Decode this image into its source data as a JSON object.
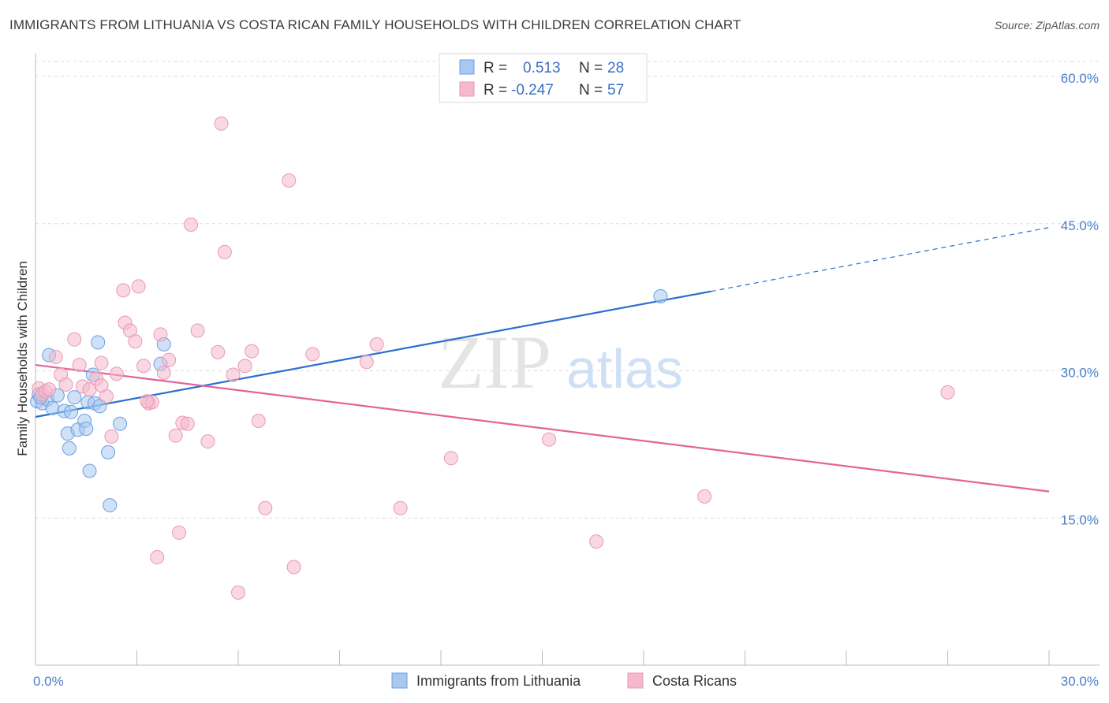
{
  "title": "IMMIGRANTS FROM LITHUANIA VS COSTA RICAN FAMILY HOUSEHOLDS WITH CHILDREN CORRELATION CHART",
  "source": "Source: ZipAtlas.com",
  "watermark": {
    "zip": "ZIP",
    "atlas": "atlas"
  },
  "legend": {
    "rows": [
      {
        "r_label": "R =",
        "r_value": "0.513",
        "n_label": "N =",
        "n_value": "28",
        "color": "#a8c8f0"
      },
      {
        "r_label": "R =",
        "r_value": "-0.247",
        "n_label": "N =",
        "n_value": "57",
        "color": "#f5b8cc"
      }
    ]
  },
  "chart_data": {
    "type": "scatter",
    "xlabel": "",
    "ylabel": "Family Households with Children",
    "xlim": [
      0,
      30
    ],
    "ylim": [
      0,
      62
    ],
    "x_tick_labels": [
      "0.0%",
      "30.0%"
    ],
    "y_ticks": [
      15,
      30,
      45,
      60
    ],
    "y_tick_labels": [
      "15.0%",
      "30.0%",
      "45.0%",
      "60.0%"
    ],
    "grid": true,
    "legend_position": "top-center",
    "series": [
      {
        "name": "Immigrants from Lithuania",
        "color": "#a8c8f0",
        "stroke": "#6b9fe0",
        "line_color": "#2b6fcf",
        "trend": {
          "x0": 0,
          "y0": 25.3,
          "x1": 20,
          "y1": 38.1,
          "dash_to_x": 30,
          "dash_to_y": 44.6
        },
        "points": [
          [
            0.05,
            26.9
          ],
          [
            0.1,
            27.6
          ],
          [
            0.2,
            26.7
          ],
          [
            0.35,
            27.1
          ],
          [
            0.4,
            31.6
          ],
          [
            0.5,
            26.2
          ],
          [
            0.65,
            27.5
          ],
          [
            0.85,
            25.9
          ],
          [
            0.95,
            23.6
          ],
          [
            1.0,
            22.1
          ],
          [
            1.05,
            25.8
          ],
          [
            1.15,
            27.3
          ],
          [
            1.25,
            24.0
          ],
          [
            1.45,
            24.9
          ],
          [
            1.5,
            24.1
          ],
          [
            1.55,
            26.8
          ],
          [
            1.6,
            19.8
          ],
          [
            1.7,
            29.6
          ],
          [
            1.75,
            26.7
          ],
          [
            1.85,
            32.9
          ],
          [
            1.9,
            26.4
          ],
          [
            2.15,
            21.7
          ],
          [
            2.2,
            16.3
          ],
          [
            2.5,
            24.6
          ],
          [
            3.7,
            30.7
          ],
          [
            3.8,
            32.7
          ],
          [
            18.5,
            37.6
          ],
          [
            0.15,
            27.3
          ]
        ]
      },
      {
        "name": "Costa Ricans",
        "color": "#f5b8cc",
        "stroke": "#e89ab3",
        "line_color": "#e0659a",
        "trend": {
          "x0": 0,
          "y0": 30.6,
          "x1": 30,
          "y1": 17.7
        },
        "points": [
          [
            0.1,
            28.2
          ],
          [
            0.2,
            27.6
          ],
          [
            0.3,
            27.9
          ],
          [
            0.4,
            28.1
          ],
          [
            0.6,
            31.4
          ],
          [
            0.75,
            29.6
          ],
          [
            0.9,
            28.6
          ],
          [
            1.15,
            33.2
          ],
          [
            1.3,
            30.6
          ],
          [
            1.4,
            28.4
          ],
          [
            1.6,
            28.1
          ],
          [
            1.8,
            29.2
          ],
          [
            1.95,
            30.8
          ],
          [
            2.1,
            27.4
          ],
          [
            2.25,
            23.3
          ],
          [
            2.4,
            29.7
          ],
          [
            2.6,
            38.2
          ],
          [
            2.65,
            34.9
          ],
          [
            2.8,
            34.1
          ],
          [
            2.95,
            33.0
          ],
          [
            3.05,
            38.6
          ],
          [
            3.2,
            30.5
          ],
          [
            3.35,
            26.7
          ],
          [
            3.45,
            26.8
          ],
          [
            3.6,
            11.0
          ],
          [
            3.7,
            33.7
          ],
          [
            3.8,
            29.8
          ],
          [
            3.95,
            31.1
          ],
          [
            4.15,
            23.4
          ],
          [
            4.25,
            13.5
          ],
          [
            4.35,
            24.7
          ],
          [
            4.5,
            24.6
          ],
          [
            4.6,
            44.9
          ],
          [
            4.8,
            34.1
          ],
          [
            5.1,
            22.8
          ],
          [
            5.4,
            31.9
          ],
          [
            5.6,
            42.1
          ],
          [
            5.85,
            29.6
          ],
          [
            6.2,
            30.5
          ],
          [
            6.4,
            32.0
          ],
          [
            6.6,
            24.9
          ],
          [
            6.8,
            16.0
          ],
          [
            5.5,
            55.2
          ],
          [
            6.0,
            7.4
          ],
          [
            7.5,
            49.4
          ],
          [
            7.65,
            10.0
          ],
          [
            8.2,
            31.7
          ],
          [
            9.8,
            30.9
          ],
          [
            10.1,
            32.7
          ],
          [
            10.8,
            16.0
          ],
          [
            12.3,
            21.1
          ],
          [
            15.2,
            23.0
          ],
          [
            16.6,
            12.6
          ],
          [
            19.8,
            17.2
          ],
          [
            27.0,
            27.8
          ],
          [
            1.95,
            28.5
          ],
          [
            3.3,
            26.9
          ]
        ]
      }
    ]
  }
}
